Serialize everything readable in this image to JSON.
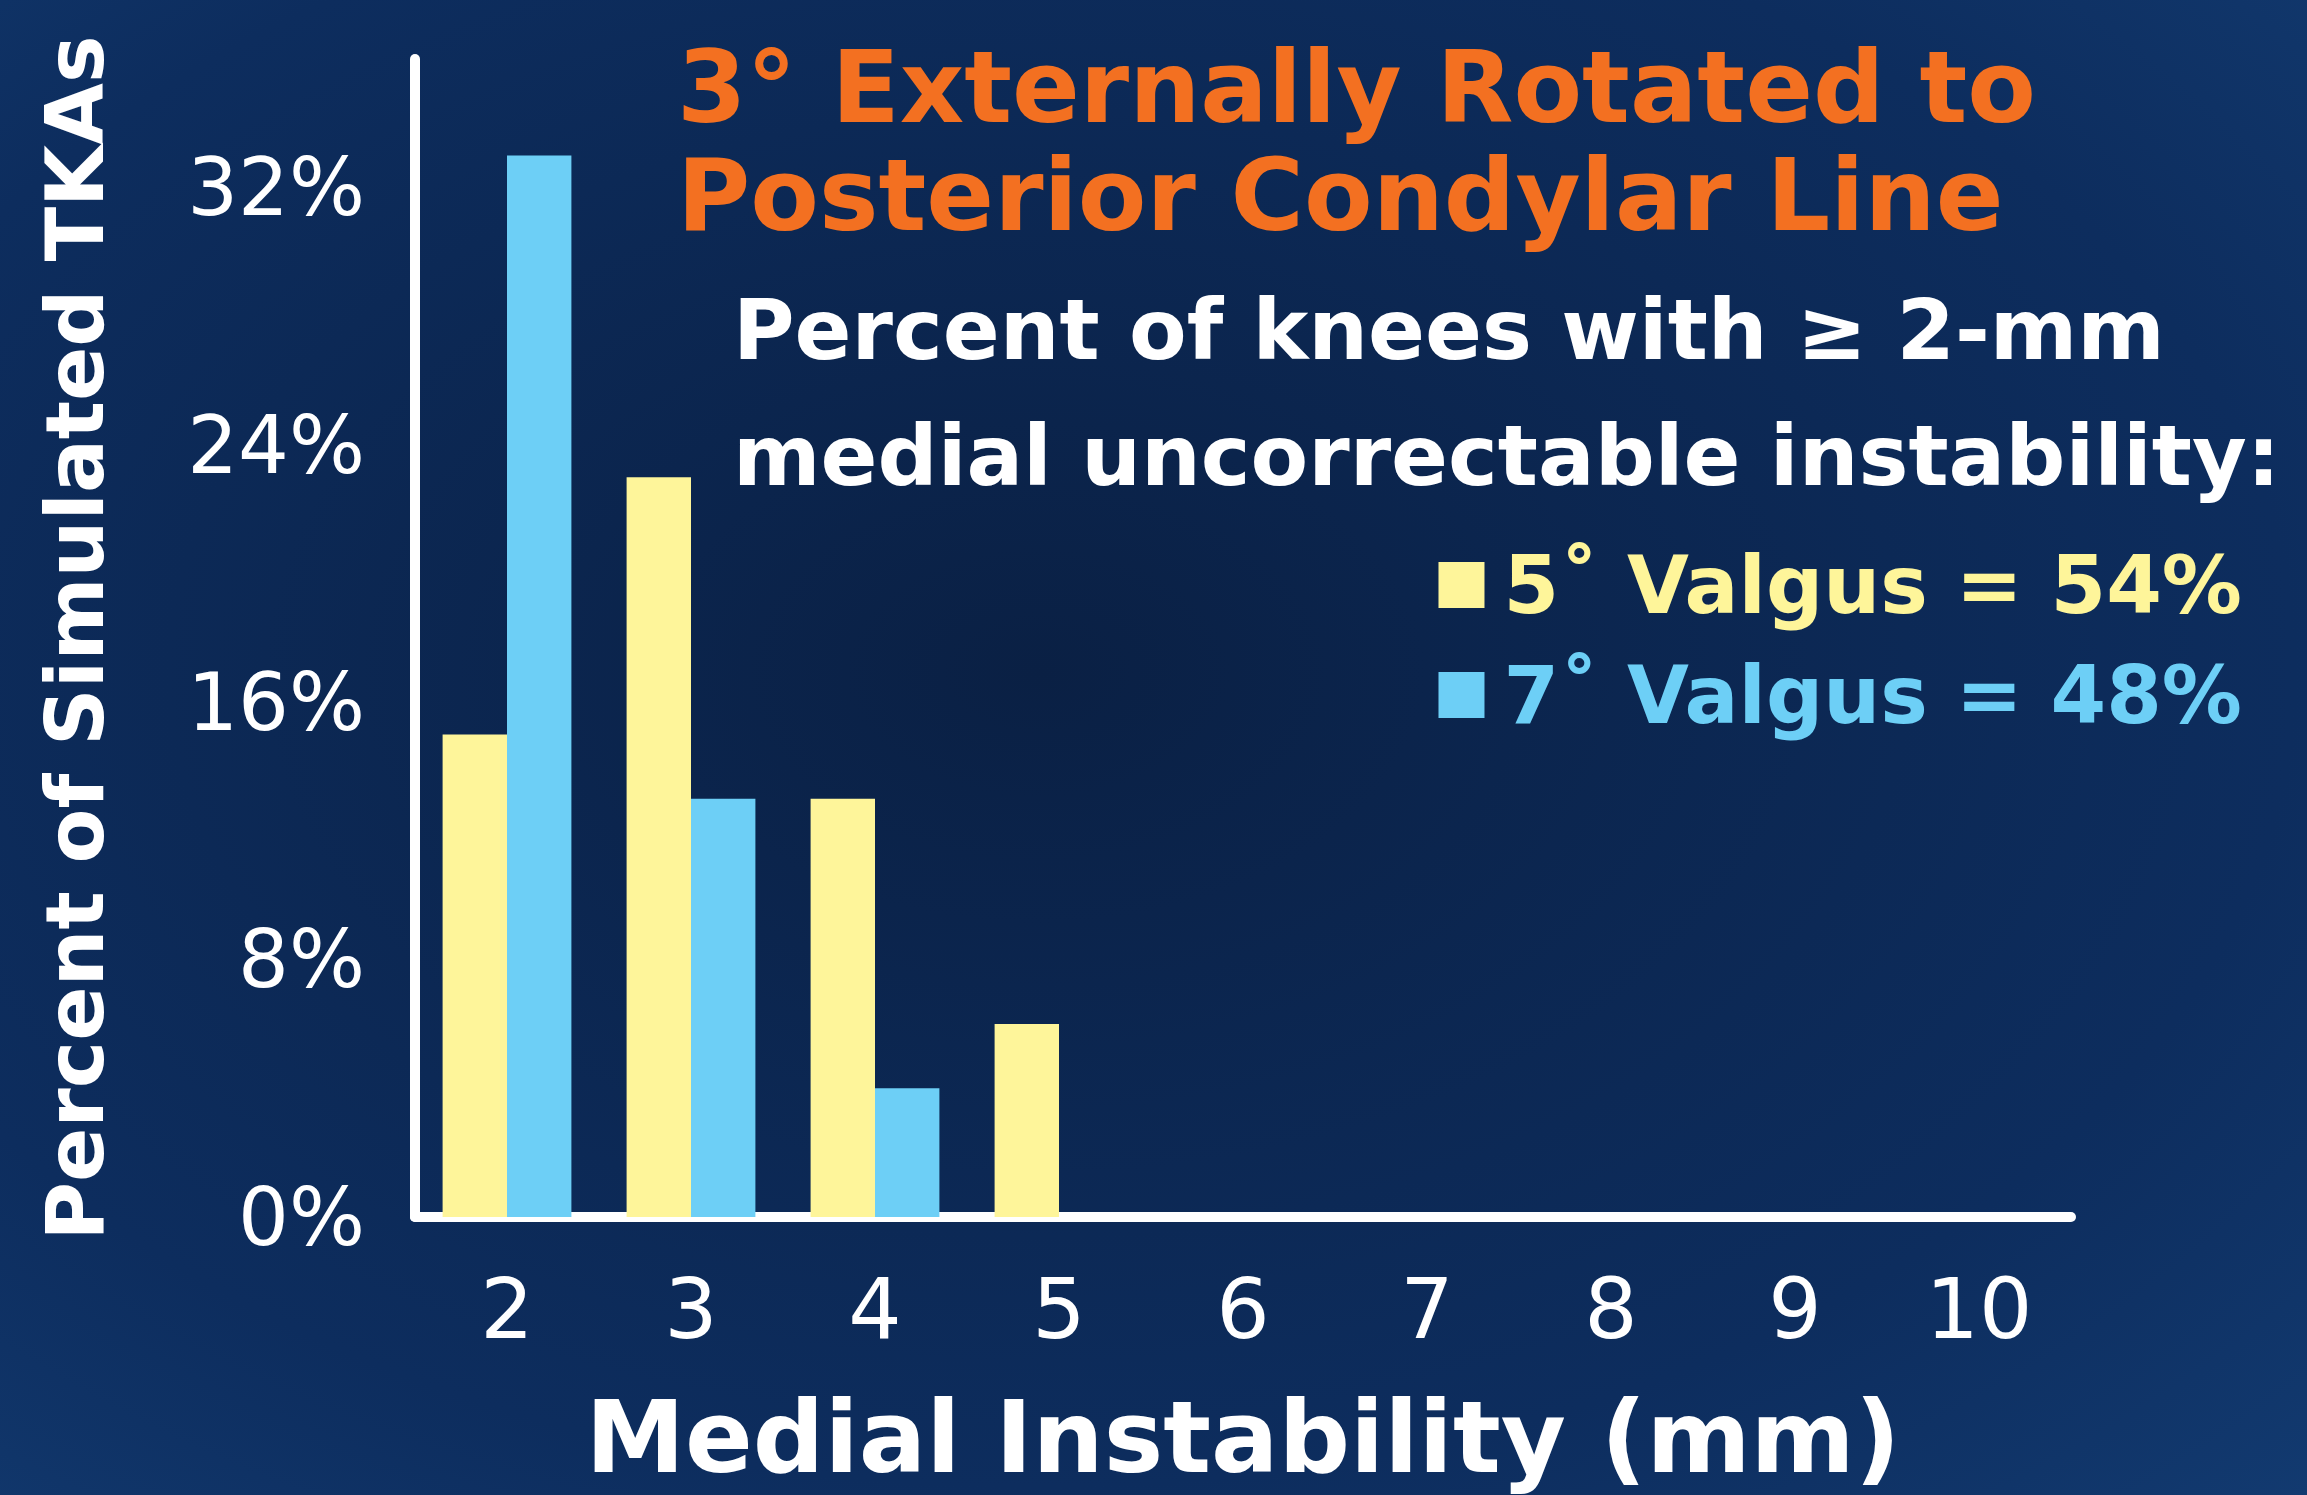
{
  "chart_data": {
    "type": "bar",
    "title": "3° Externally Rotated to\nPosterior Condylar Line",
    "annotations": [
      "Percent of knees with ≥ 2-mm\nmedial uncorrectable instability:"
    ],
    "xlabel": "Medial Instability (mm)",
    "ylabel": "Percent of Simulated TKAs",
    "categories": [
      "2",
      "3",
      "4",
      "5",
      "6",
      "7",
      "8",
      "9",
      "10"
    ],
    "series": [
      {
        "name": "5˚ Valgus = 54%",
        "color": "#fef59a",
        "values": [
          15,
          23,
          13,
          6,
          0,
          0,
          0,
          0,
          0
        ]
      },
      {
        "name": "7˚ Valgus = 48%",
        "color": "#6dcff6",
        "values": [
          33,
          13,
          4,
          0,
          0,
          0,
          0,
          0,
          0
        ]
      }
    ],
    "ylim": [
      0,
      36
    ],
    "yticks": [
      {
        "value": 0,
        "label": "0%"
      },
      {
        "value": 8,
        "label": "8%"
      },
      {
        "value": 16,
        "label": "16%"
      },
      {
        "value": 24,
        "label": "24%"
      },
      {
        "value": 32,
        "label": "32%"
      }
    ],
    "grid": false,
    "legend": "right"
  }
}
